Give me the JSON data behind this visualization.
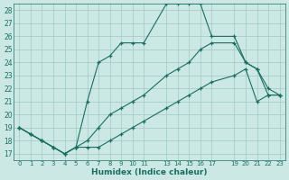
{
  "xlabel": "Humidex (Indice chaleur)",
  "bg_color": "#cce8e4",
  "grid_color": "#a0c8c4",
  "line_color": "#1a6e60",
  "xlim": [
    -0.5,
    23.5
  ],
  "ylim": [
    16.5,
    28.5
  ],
  "yticks": [
    17,
    18,
    19,
    20,
    21,
    22,
    23,
    24,
    25,
    26,
    27,
    28
  ],
  "xticks": [
    0,
    1,
    2,
    3,
    4,
    5,
    6,
    7,
    8,
    9,
    10,
    11,
    13,
    14,
    15,
    16,
    17,
    19,
    20,
    21,
    22,
    23
  ],
  "xtick_labels": [
    "0",
    "1",
    "2",
    "3",
    "4",
    "5",
    "6",
    "7",
    "8",
    "9",
    "10",
    "11",
    "13",
    "14",
    "15",
    "16",
    "17",
    "19",
    "20",
    "21",
    "22",
    "23"
  ],
  "lines": [
    {
      "x": [
        0,
        1,
        2,
        3,
        4,
        5,
        6,
        7,
        8,
        9,
        10,
        11,
        13,
        14,
        15,
        16,
        17,
        19,
        20,
        21,
        22,
        23
      ],
      "y": [
        19,
        18.5,
        18,
        17.5,
        17,
        17.5,
        21,
        24,
        24.5,
        25.5,
        25.5,
        25.5,
        28.5,
        28.5,
        28.5,
        28.5,
        26,
        26,
        24,
        23.5,
        22,
        21.5
      ]
    },
    {
      "x": [
        0,
        1,
        2,
        3,
        4,
        5,
        6,
        7,
        8,
        9,
        10,
        11,
        13,
        14,
        15,
        16,
        17,
        19,
        20,
        21,
        22,
        23
      ],
      "y": [
        19,
        18.5,
        18,
        17.5,
        17,
        17.5,
        18,
        19,
        20,
        20.5,
        21,
        21.5,
        23,
        23.5,
        24,
        25,
        25.5,
        25.5,
        24,
        23.5,
        21.5,
        21.5
      ]
    },
    {
      "x": [
        0,
        1,
        2,
        3,
        4,
        5,
        6,
        7,
        8,
        9,
        10,
        11,
        13,
        14,
        15,
        16,
        17,
        19,
        20,
        21,
        22,
        23
      ],
      "y": [
        19,
        18.5,
        18,
        17.5,
        17,
        17.5,
        17.5,
        17.5,
        18,
        18.5,
        19,
        19.5,
        20.5,
        21,
        21.5,
        22,
        22.5,
        23,
        23.5,
        21,
        21.5,
        21.5
      ]
    }
  ]
}
